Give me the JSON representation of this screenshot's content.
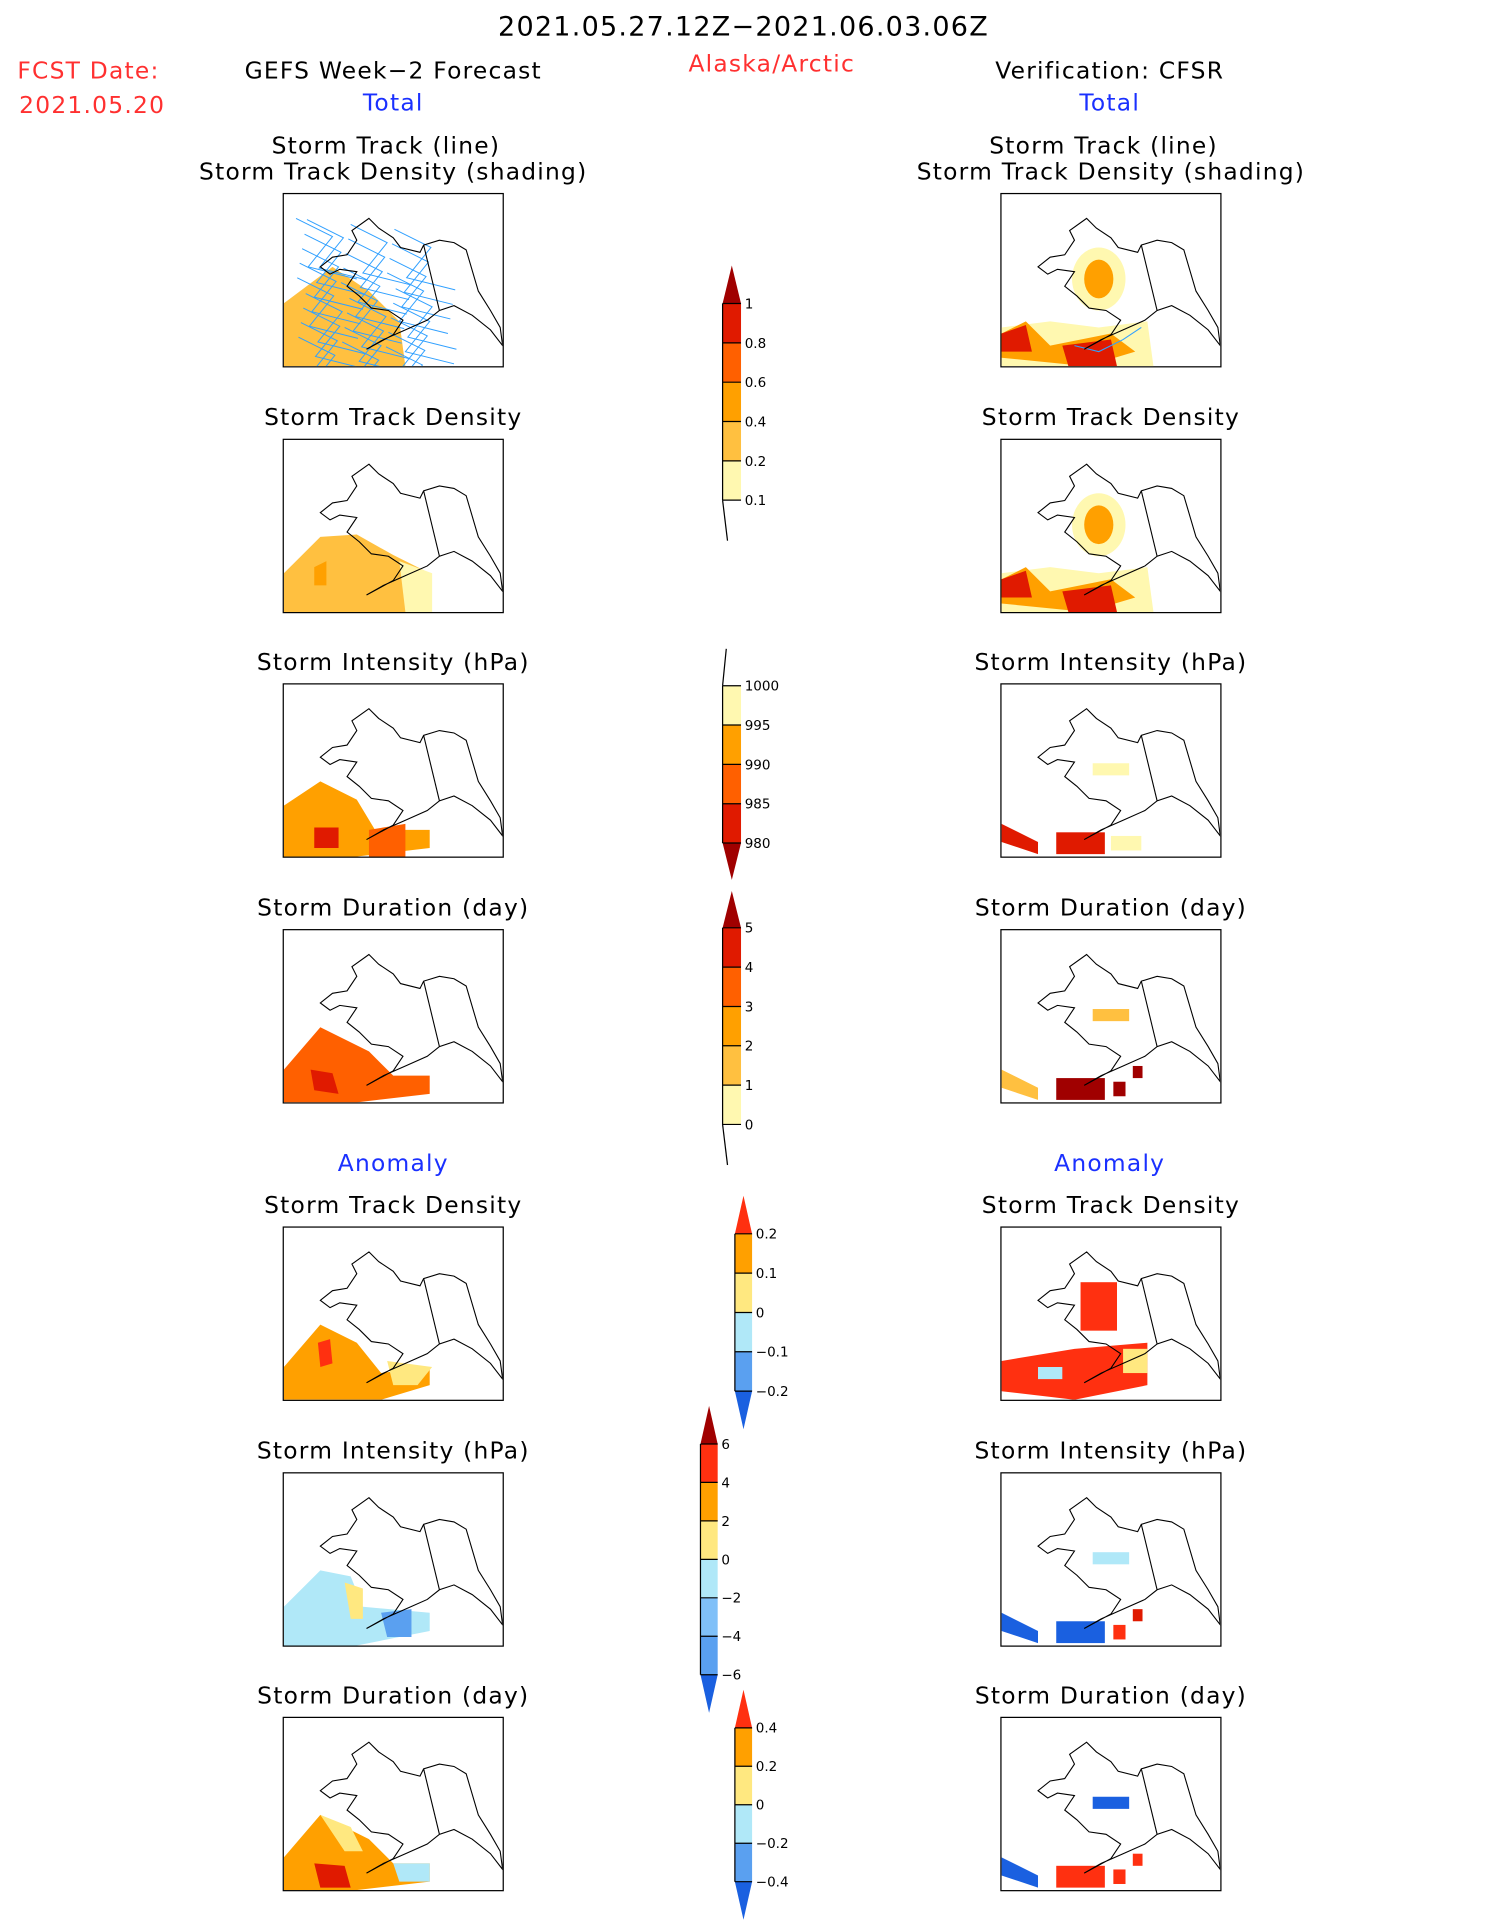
{
  "header": {
    "period": "2021.05.27.12Z−2021.06.03.06Z",
    "fcst_label": "FCST Date:",
    "fcst_date": "2021.05.20",
    "left_title": "GEFS Week−2 Forecast",
    "region": "Alaska/Arctic",
    "right_title": "Verification: CFSR",
    "total_label": "Total",
    "anomaly_label": "Anomaly"
  },
  "panel_titles": {
    "track_line": "Storm Track (line)",
    "track_shading": "Storm Track Density (shading)",
    "density": "Storm Track Density",
    "intensity": "Storm Intensity (hPa)",
    "duration": "Storm Duration (day)"
  },
  "chart_data": [
    {
      "type": "heatmap",
      "name": "density-total",
      "colorbar": {
        "labels": [
          "1",
          "0.8",
          "0.6",
          "0.4",
          "0.2",
          "0.1"
        ],
        "colors": [
          "#a00000",
          "#e01a00",
          "#ff6000",
          "#ffa000",
          "#ffc040",
          "#fff8b0"
        ],
        "extend": "max"
      }
    },
    {
      "type": "heatmap",
      "name": "intensity-total",
      "colorbar": {
        "labels": [
          "1000",
          "995",
          "990",
          "985",
          "980"
        ],
        "colors": [
          "#fff8b0",
          "#ffa000",
          "#ff6000",
          "#e01a00",
          "#a00000"
        ],
        "extend": "min"
      }
    },
    {
      "type": "heatmap",
      "name": "duration-total",
      "colorbar": {
        "labels": [
          "5",
          "4",
          "3",
          "2",
          "1",
          "0"
        ],
        "colors": [
          "#a00000",
          "#e01a00",
          "#ff6000",
          "#ffa000",
          "#ffc040",
          "#fff8b0"
        ],
        "extend": "max"
      }
    },
    {
      "type": "heatmap",
      "name": "density-anomaly",
      "colorbar": {
        "labels": [
          "0.2",
          "0.1",
          "0",
          "−0.1",
          "−0.2"
        ],
        "colors": [
          "#ff3010",
          "#ffa000",
          "#ffe880",
          "#b0e8f8",
          "#5aa0f0",
          "#1a60e0"
        ],
        "extend": "both"
      }
    },
    {
      "type": "heatmap",
      "name": "intensity-anomaly",
      "colorbar": {
        "labels": [
          "6",
          "4",
          "2",
          "0",
          "−2",
          "−4",
          "−6"
        ],
        "colors": [
          "#a00000",
          "#ff3010",
          "#ffa000",
          "#ffe880",
          "#b0e8f8",
          "#80c0f8",
          "#5aa0f0",
          "#1a60e0"
        ],
        "extend": "both"
      }
    },
    {
      "type": "heatmap",
      "name": "duration-anomaly",
      "colorbar": {
        "labels": [
          "0.4",
          "0.2",
          "0",
          "−0.2",
          "−0.4"
        ],
        "colors": [
          "#ff3010",
          "#ffa000",
          "#ffe880",
          "#b0e8f8",
          "#5aa0f0",
          "#1a60e0"
        ],
        "extend": "both"
      }
    }
  ]
}
